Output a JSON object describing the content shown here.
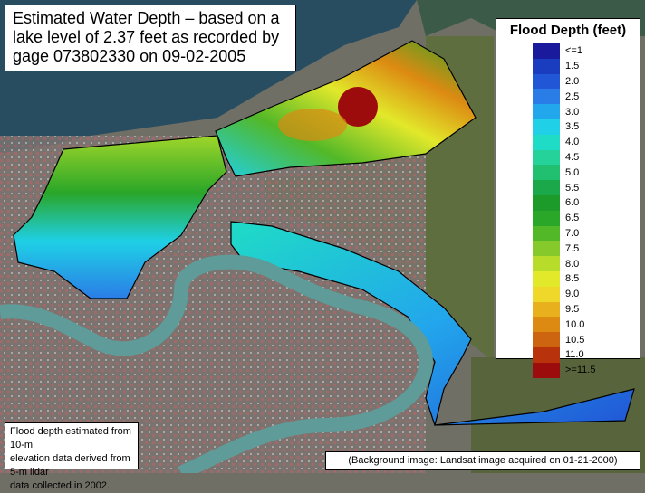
{
  "title": {
    "lines": [
      "Estimated Water Depth – based on a",
      "lake level of 2.37 feet as recorded by",
      "gage 073802330 on 09-02-2005"
    ]
  },
  "legend": {
    "title": "Flood Depth (feet)",
    "items": [
      {
        "label": "<=1",
        "color": "#1a1a9c"
      },
      {
        "label": "1.5",
        "color": "#1a3cbf"
      },
      {
        "label": "2.0",
        "color": "#2156d6"
      },
      {
        "label": "2.5",
        "color": "#2a7de6"
      },
      {
        "label": "3.0",
        "color": "#22a6ec"
      },
      {
        "label": "3.5",
        "color": "#1fd0e6"
      },
      {
        "label": "4.0",
        "color": "#1fdcc6"
      },
      {
        "label": "4.5",
        "color": "#25d29a"
      },
      {
        "label": "5.0",
        "color": "#20c070"
      },
      {
        "label": "5.5",
        "color": "#1aa84a"
      },
      {
        "label": "6.0",
        "color": "#1c9a2a"
      },
      {
        "label": "6.5",
        "color": "#2aa628"
      },
      {
        "label": "7.0",
        "color": "#52b828"
      },
      {
        "label": "7.5",
        "color": "#86c92a"
      },
      {
        "label": "8.0",
        "color": "#b8dc2a"
      },
      {
        "label": "8.5",
        "color": "#e2e82a"
      },
      {
        "label": "9.0",
        "color": "#f0d82a"
      },
      {
        "label": "9.5",
        "color": "#e8b01c"
      },
      {
        "label": "10.0",
        "color": "#dc8a12"
      },
      {
        "label": "10.5",
        "color": "#cc6410"
      },
      {
        "label": "11.0",
        "color": "#b8320c"
      },
      {
        "label": ">=11.5",
        "color": "#9c0c0c"
      }
    ]
  },
  "note": {
    "lines": [
      "Flood depth estimated from 10-m",
      "elevation data derived from 5-m lidar",
      "data collected in 2002."
    ]
  },
  "credit": "(Background image: Landsat image acquired on 01-21-2000)",
  "colors": {
    "lake": "#284d60",
    "river": "#5f9b98",
    "land": "#77776c",
    "marsh": "#6a7a45",
    "urban_red": "#b06868",
    "boundary": "#000000"
  }
}
